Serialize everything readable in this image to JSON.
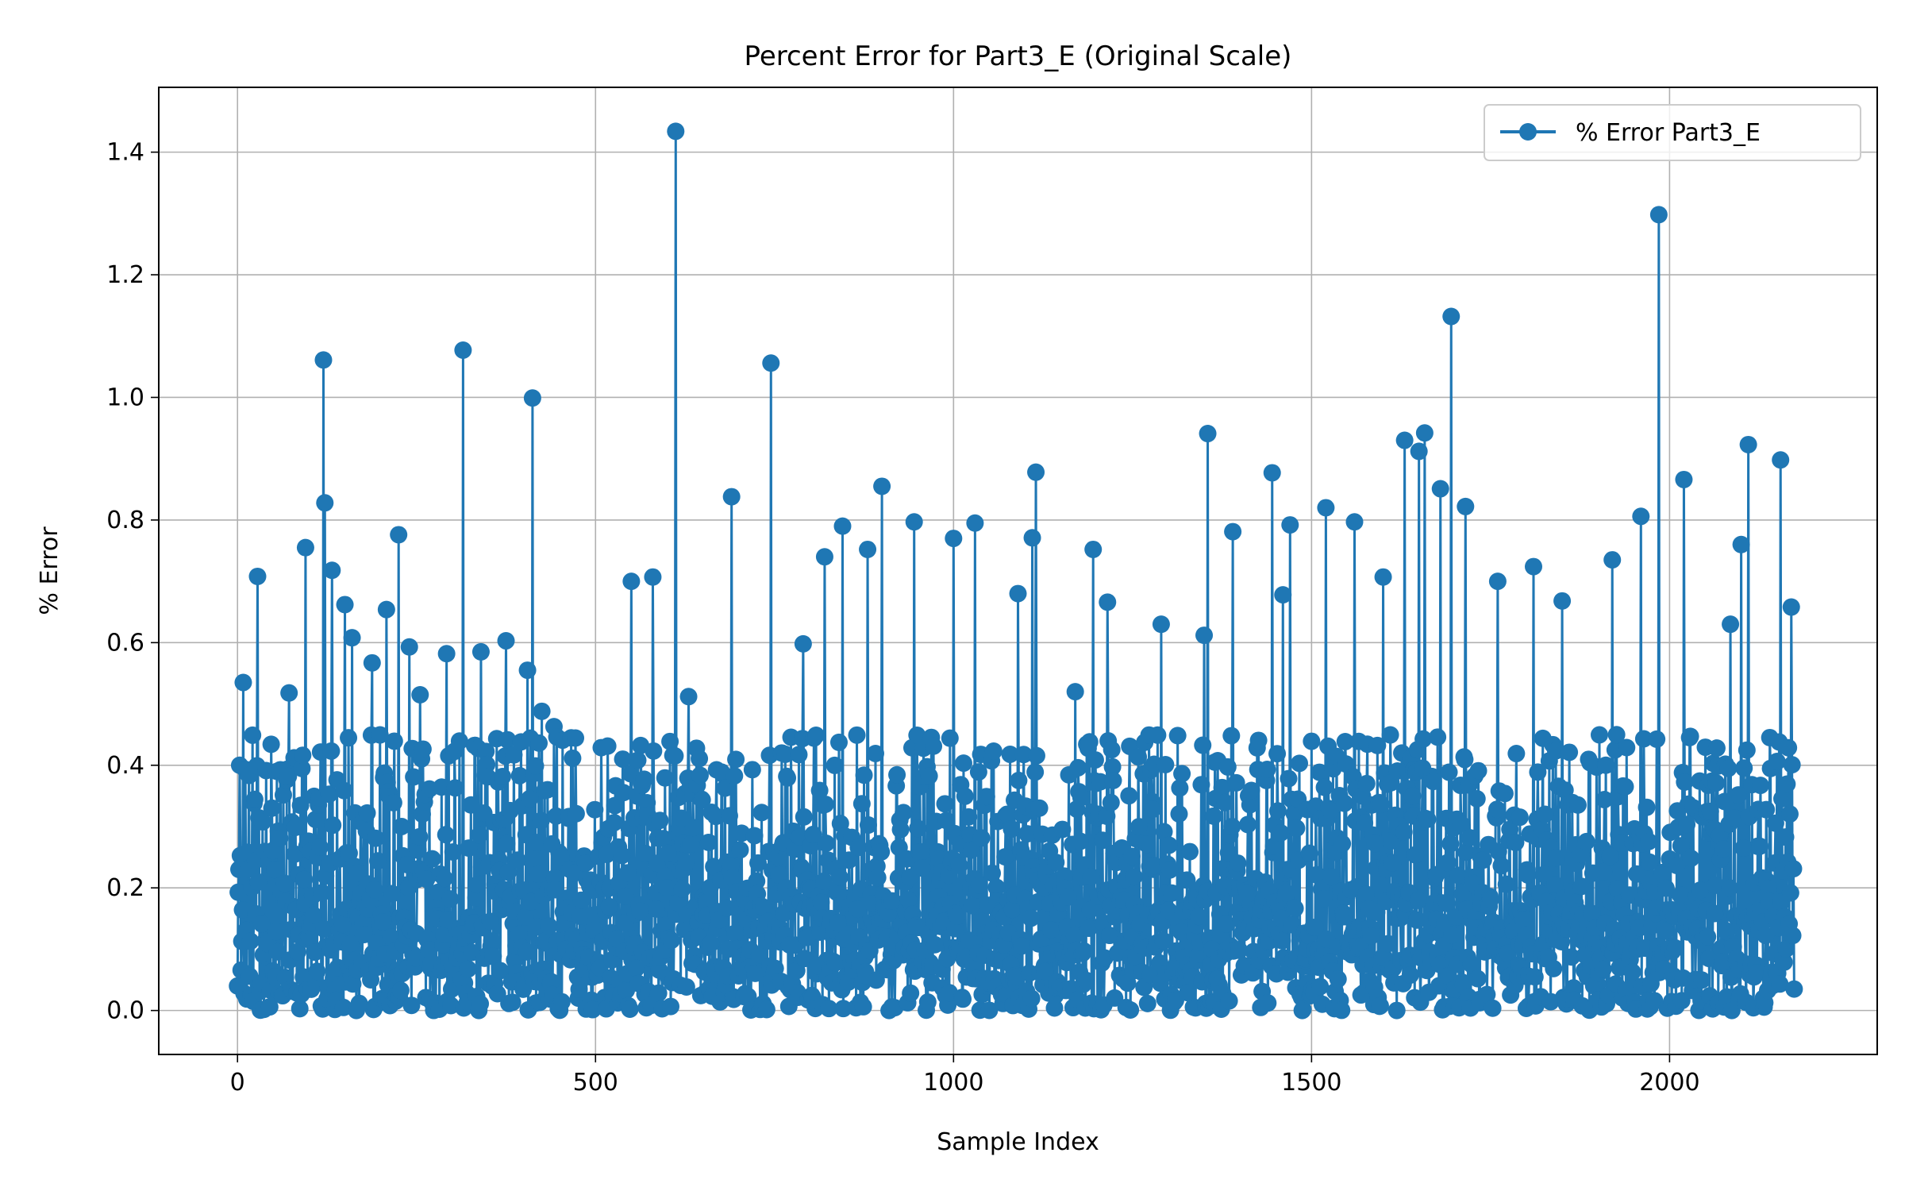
{
  "chart_data": {
    "type": "line",
    "title": "Percent Error for Part3_E (Original Scale)",
    "xlabel": "Sample Index",
    "ylabel": "% Error",
    "xlim": [
      -110,
      2290
    ],
    "ylim": [
      -0.0717,
      1.5057
    ],
    "xticks": [
      0,
      500,
      1000,
      1500,
      2000
    ],
    "yticks": [
      0.0,
      0.2,
      0.4,
      0.6,
      0.8,
      1.0,
      1.2,
      1.4
    ],
    "xtick_labels": [
      "0",
      "500",
      "1000",
      "1500",
      "2000"
    ],
    "ytick_labels": [
      "0.0",
      "0.2",
      "0.4",
      "0.6",
      "0.8",
      "1.0",
      "1.2",
      "1.4"
    ],
    "grid": true,
    "legend_position": "upper right",
    "marker": "circle",
    "n_points": 2175,
    "series": [
      {
        "name": "% Error Part3_E",
        "color": "#1f77b4",
        "peaks": [
          [
            0,
            0.04
          ],
          [
            3,
            0.4
          ],
          [
            8,
            0.535
          ],
          [
            28,
            0.708
          ],
          [
            55,
            0.39
          ],
          [
            72,
            0.518
          ],
          [
            95,
            0.755
          ],
          [
            120,
            1.061
          ],
          [
            122,
            0.828
          ],
          [
            132,
            0.718
          ],
          [
            150,
            0.662
          ],
          [
            160,
            0.608
          ],
          [
            188,
            0.567
          ],
          [
            208,
            0.654
          ],
          [
            225,
            0.776
          ],
          [
            240,
            0.593
          ],
          [
            255,
            0.515
          ],
          [
            292,
            0.582
          ],
          [
            315,
            1.077
          ],
          [
            340,
            0.585
          ],
          [
            375,
            0.603
          ],
          [
            405,
            0.555
          ],
          [
            412,
            0.999
          ],
          [
            425,
            0.488
          ],
          [
            442,
            0.463
          ],
          [
            550,
            0.7
          ],
          [
            580,
            0.707
          ],
          [
            612,
            1.434
          ],
          [
            630,
            0.512
          ],
          [
            690,
            0.838
          ],
          [
            745,
            1.056
          ],
          [
            790,
            0.598
          ],
          [
            820,
            0.74
          ],
          [
            845,
            0.79
          ],
          [
            880,
            0.752
          ],
          [
            900,
            0.855
          ],
          [
            945,
            0.797
          ],
          [
            1000,
            0.77
          ],
          [
            1030,
            0.795
          ],
          [
            1090,
            0.68
          ],
          [
            1110,
            0.771
          ],
          [
            1115,
            0.878
          ],
          [
            1170,
            0.52
          ],
          [
            1195,
            0.752
          ],
          [
            1215,
            0.666
          ],
          [
            1290,
            0.63
          ],
          [
            1350,
            0.612
          ],
          [
            1355,
            0.941
          ],
          [
            1390,
            0.781
          ],
          [
            1445,
            0.877
          ],
          [
            1460,
            0.678
          ],
          [
            1470,
            0.792
          ],
          [
            1520,
            0.82
          ],
          [
            1560,
            0.797
          ],
          [
            1600,
            0.707
          ],
          [
            1630,
            0.93
          ],
          [
            1650,
            0.912
          ],
          [
            1658,
            0.942
          ],
          [
            1680,
            0.851
          ],
          [
            1695,
            1.132
          ],
          [
            1715,
            0.822
          ],
          [
            1760,
            0.7
          ],
          [
            1810,
            0.724
          ],
          [
            1850,
            0.668
          ],
          [
            1920,
            0.735
          ],
          [
            1960,
            0.806
          ],
          [
            1985,
            1.298
          ],
          [
            2020,
            0.866
          ],
          [
            2085,
            0.63
          ],
          [
            2100,
            0.76
          ],
          [
            2110,
            0.923
          ],
          [
            2155,
            0.898
          ],
          [
            2170,
            0.658
          ],
          [
            2174,
            0.035
          ]
        ],
        "typical_range": [
          0.0,
          0.45
        ],
        "typical_median": 0.18
      }
    ]
  }
}
